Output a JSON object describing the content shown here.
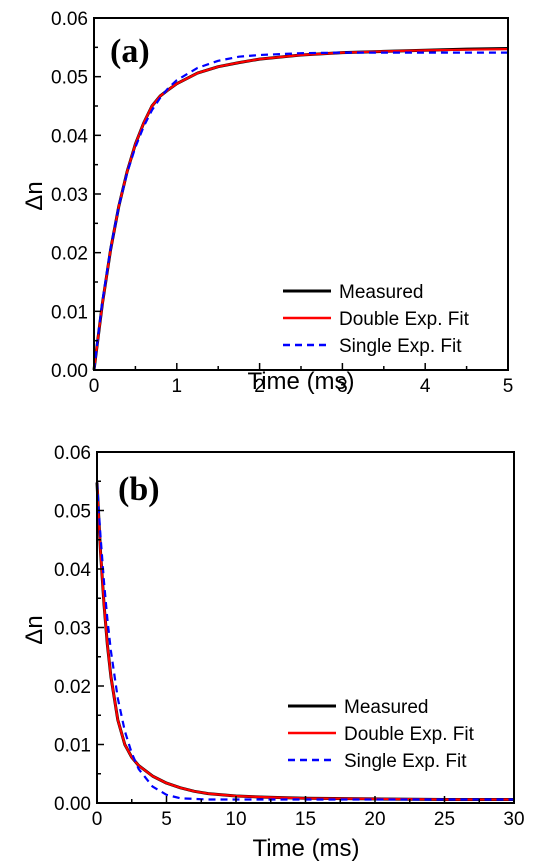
{
  "chart_data": [
    {
      "type": "line",
      "panel_label": "(a)",
      "xlabel": "Time (ms)",
      "ylabel": "Δn",
      "xlim": [
        0,
        5
      ],
      "ylim": [
        0,
        0.06
      ],
      "xticks": [
        "0",
        "1",
        "2",
        "3",
        "4",
        "5"
      ],
      "yticks": [
        "0.00",
        "0.01",
        "0.02",
        "0.03",
        "0.04",
        "0.05",
        "0.06"
      ],
      "grid": false,
      "legend_position": "bottom-right",
      "x": [
        0,
        0.1,
        0.2,
        0.3,
        0.4,
        0.5,
        0.6,
        0.7,
        0.8,
        0.9,
        1.0,
        1.25,
        1.5,
        1.75,
        2.0,
        2.5,
        3.0,
        3.5,
        4.0,
        4.5,
        5.0
      ],
      "series": [
        {
          "name": "Measured",
          "color": "#000000",
          "style": "solid",
          "values": [
            0,
            0.0112,
            0.0205,
            0.0279,
            0.0338,
            0.0385,
            0.0421,
            0.045,
            0.0467,
            0.0478,
            0.0488,
            0.0506,
            0.0517,
            0.0524,
            0.053,
            0.0537,
            0.0541,
            0.0543,
            0.0545,
            0.0547,
            0.0548
          ]
        },
        {
          "name": "Double Exp. Fit",
          "color": "#ff0000",
          "style": "solid",
          "values": [
            0,
            0.0112,
            0.0205,
            0.0279,
            0.0338,
            0.0385,
            0.0421,
            0.045,
            0.0467,
            0.0478,
            0.0488,
            0.0506,
            0.0517,
            0.0524,
            0.053,
            0.0537,
            0.0541,
            0.0543,
            0.0545,
            0.0546,
            0.0547
          ]
        },
        {
          "name": "Single Exp. Fit",
          "color": "#0000ff",
          "style": "dashed",
          "values": [
            0,
            0.0116,
            0.0207,
            0.0279,
            0.0336,
            0.038,
            0.0415,
            0.0443,
            0.0464,
            0.0481,
            0.0494,
            0.0515,
            0.0527,
            0.0534,
            0.0537,
            0.054,
            0.0541,
            0.0541,
            0.0541,
            0.0541,
            0.0541
          ]
        }
      ]
    },
    {
      "type": "line",
      "panel_label": "(b)",
      "xlabel": "Time (ms)",
      "ylabel": "Δn",
      "xlim": [
        0,
        30
      ],
      "ylim": [
        0,
        0.06
      ],
      "xticks": [
        "0",
        "5",
        "10",
        "15",
        "20",
        "25",
        "30"
      ],
      "yticks": [
        "0.00",
        "0.01",
        "0.02",
        "0.03",
        "0.04",
        "0.05",
        "0.06"
      ],
      "grid": false,
      "legend_position": "bottom-right",
      "x": [
        0,
        0.25,
        0.5,
        0.75,
        1.0,
        1.5,
        2.0,
        2.5,
        3.0,
        4.0,
        5.0,
        6.0,
        7.0,
        8.0,
        10.0,
        12.0,
        15.0,
        20.0,
        25.0,
        30.0
      ],
      "series": [
        {
          "name": "Measured",
          "color": "#000000",
          "style": "solid",
          "values": [
            0.0548,
            0.043,
            0.034,
            0.027,
            0.0216,
            0.0142,
            0.01,
            0.0078,
            0.0064,
            0.0046,
            0.0034,
            0.0026,
            0.002,
            0.0016,
            0.0012,
            0.001,
            0.0008,
            0.0007,
            0.0006,
            0.0006
          ]
        },
        {
          "name": "Double Exp. Fit",
          "color": "#ff0000",
          "style": "solid",
          "values": [
            0.0548,
            0.043,
            0.034,
            0.027,
            0.0216,
            0.0142,
            0.01,
            0.0078,
            0.0064,
            0.0046,
            0.0034,
            0.0026,
            0.002,
            0.0016,
            0.0012,
            0.001,
            0.0008,
            0.0007,
            0.0006,
            0.0006
          ]
        },
        {
          "name": "Single Exp. Fit",
          "color": "#0000ff",
          "style": "dashed",
          "values": [
            0.0548,
            0.0456,
            0.0378,
            0.0314,
            0.026,
            0.0179,
            0.0123,
            0.0085,
            0.0058,
            0.0028,
            0.0014,
            0.0008,
            0.0007,
            0.0006,
            0.0006,
            0.0006,
            0.0006,
            0.0006,
            0.0006,
            0.0006
          ]
        }
      ]
    }
  ]
}
